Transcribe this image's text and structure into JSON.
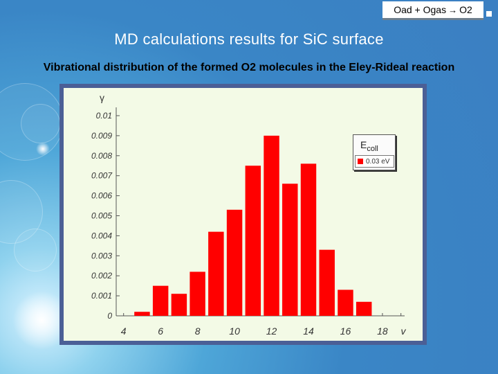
{
  "header": {
    "reaction_left": "Oad + Ogas",
    "reaction_right": "O2",
    "title": "MD calculations results for SiC surface",
    "subtitle": "Vibrational distribution of the formed O2 molecules in the Eley-Rideal reaction"
  },
  "chart_data": {
    "type": "bar",
    "title": "",
    "ylabel": "γ",
    "xlabel": "v",
    "x": [
      5,
      6,
      7,
      8,
      9,
      10,
      11,
      12,
      13,
      14,
      15,
      16,
      17
    ],
    "values": [
      0.0002,
      0.0015,
      0.0011,
      0.0022,
      0.0042,
      0.0053,
      0.0075,
      0.009,
      0.0066,
      0.0076,
      0.0033,
      0.0013,
      0.0007
    ],
    "xticks": [
      "4",
      "6",
      "8",
      "10",
      "12",
      "14",
      "16",
      "18"
    ],
    "yticks": [
      "0",
      "0.001",
      "0.002",
      "0.003",
      "0.004",
      "0.005",
      "0.006",
      "0.007",
      "0.008",
      "0.009",
      "0.01"
    ],
    "xlim": [
      3.6,
      19.2
    ],
    "ylim": [
      0,
      0.01
    ],
    "bar_color": "#ff0000",
    "plot_background": "#f3fae6",
    "legend": {
      "title_main": "E",
      "title_sub": "coll",
      "entries": [
        {
          "label": "0.03 eV",
          "color": "#ff0000"
        }
      ],
      "placement": "top-right"
    }
  }
}
